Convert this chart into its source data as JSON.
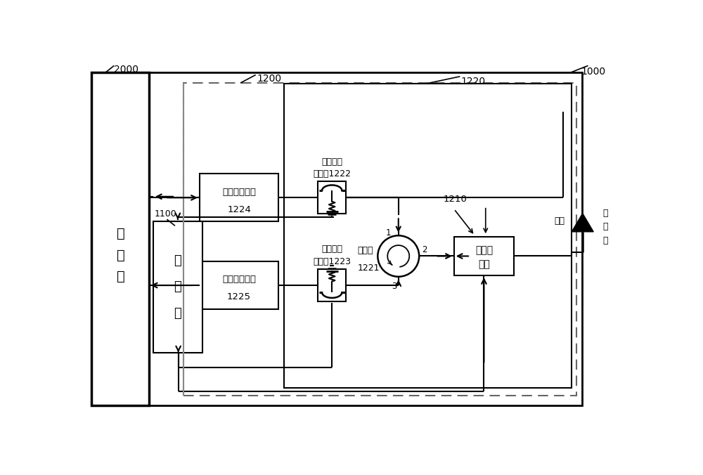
{
  "title_1000": "1000",
  "title_2000": "2000",
  "title_1200": "1200",
  "title_1220": "1220",
  "title_1210": "1210",
  "title_1100": "1100",
  "label_tx_line1": "射频发送通路",
  "label_tx_line2": "1224",
  "label_rx_line1": "射频接收通路",
  "label_rx_line2": "1225",
  "label_ctrl_1": "控",
  "label_ctrl_2": "制",
  "label_ctrl_3": "器",
  "label_xcvr_1": "收",
  "label_xcvr_2": "发",
  "label_xcvr_3": "机",
  "label_c1_line1": "第一定向",
  "label_c1_line2": "耦合器1222",
  "label_c2_line1": "第二定向",
  "label_c2_line2": "耦合器1223",
  "label_circ_line1": "环形器",
  "label_circ_line2": "1221",
  "label_imp_line1": "阻抗调",
  "label_imp_line2": "谐器",
  "label_ant": "天线",
  "label_ant_port_1": "天",
  "label_ant_port_2": "线",
  "label_ant_port_3": "口"
}
